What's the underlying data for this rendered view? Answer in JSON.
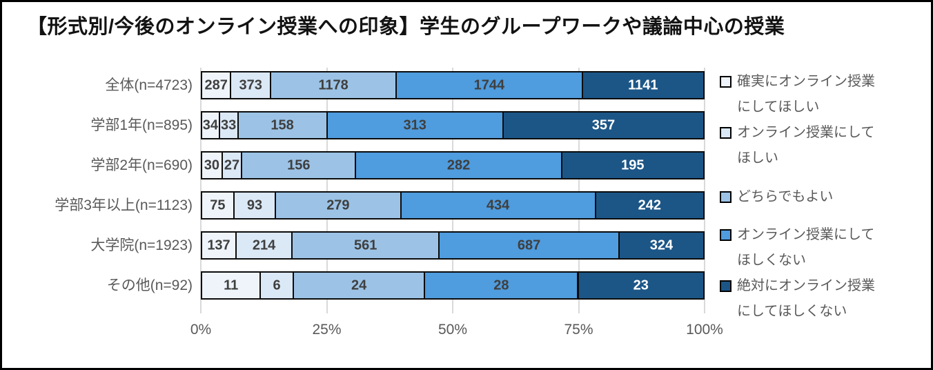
{
  "title": "【形式別/今後のオンライン授業への印象】学生のグループワークや議論中心の授業",
  "chart_data": {
    "type": "bar",
    "variant": "100%-stacked-horizontal",
    "title": "【形式別/今後のオンライン授業への印象】学生のグループワークや議論中心の授業",
    "categories": [
      "全体(n=4723)",
      "学部1年(n=895)",
      "学部2年(n=690)",
      "学部3年以上(n=1123)",
      "大学院(n=1923)",
      "その他(n=92)"
    ],
    "category_totals": [
      4723,
      895,
      690,
      1123,
      1923,
      92
    ],
    "series": [
      {
        "name": "確実にオンライン授業にしてほしい",
        "color": "#EFF4FB",
        "label_color": "#3F3F3F",
        "values": [
          287,
          34,
          30,
          75,
          137,
          11
        ]
      },
      {
        "name": "オンライン授業にしてほしい",
        "color": "#DBE8F6",
        "label_color": "#3F3F3F",
        "values": [
          373,
          33,
          27,
          93,
          214,
          6
        ]
      },
      {
        "name": "どちらでもよい",
        "color": "#9CC3E6",
        "label_color": "#3F3F3F",
        "values": [
          1178,
          158,
          156,
          279,
          561,
          24
        ]
      },
      {
        "name": "オンライン授業にしてほしくない",
        "color": "#4F9CDE",
        "label_color": "#3F3F3F",
        "values": [
          1744,
          313,
          282,
          434,
          687,
          28
        ]
      },
      {
        "name": "絶対にオンライン授業にしてほしくない",
        "color": "#1C5687",
        "label_color": "#FFFFFF",
        "values": [
          1141,
          357,
          195,
          242,
          324,
          23
        ]
      }
    ],
    "x_ticks": [
      "0%",
      "25%",
      "50%",
      "75%",
      "100%"
    ],
    "xlim": [
      0,
      100
    ],
    "grid": true,
    "gridline_color": "#D9D9D9",
    "bar_border_color": "#0B0B0B",
    "axis_text_color": "#595959",
    "legend_position": "right"
  }
}
